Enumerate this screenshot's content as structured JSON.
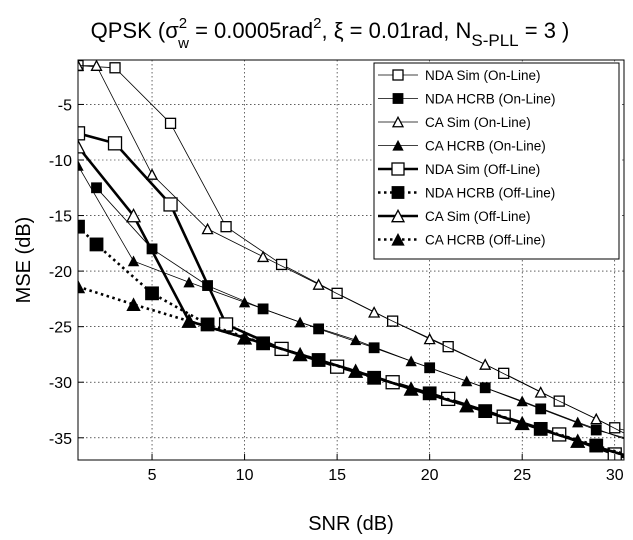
{
  "chart_data": {
    "type": "line",
    "title": {
      "prefix": "QPSK (",
      "sigma": "σ",
      "sigma_sub": "w",
      "sigma_sup": "2",
      "value1": " = 0.0005rad",
      "value1_sup": "2",
      "sep1": ", ",
      "xi": "ξ = 0.01rad",
      "sep2": ", N",
      "n_sub": "S-PLL",
      "suffix": " = 3 )"
    },
    "xlabel": "SNR (dB)",
    "ylabel": "MSE (dB)",
    "xlim": [
      1,
      30.5
    ],
    "ylim": [
      -37,
      -1
    ],
    "xticks": [
      5,
      10,
      15,
      20,
      25,
      30
    ],
    "yticks": [
      -5,
      -10,
      -15,
      -20,
      -25,
      -30,
      -35
    ],
    "grid": true,
    "legend_position": "top-right",
    "series": [
      {
        "name": "NDA Sim (On-Line)",
        "marker": "square-open",
        "line": "thin",
        "color": "#000000",
        "x": [
          1,
          3,
          6,
          9,
          12,
          15,
          18,
          21,
          24,
          27,
          30,
          31
        ],
        "y": [
          -1.5,
          -1.7,
          -6.7,
          -16.0,
          -19.4,
          -22.0,
          -24.5,
          -26.8,
          -29.2,
          -31.7,
          -34.1,
          -34.5
        ]
      },
      {
        "name": "NDA HCRB (On-Line)",
        "marker": "square-filled",
        "line": "thin",
        "color": "#000000",
        "x": [
          2,
          5,
          8,
          11,
          14,
          17,
          20,
          23,
          26,
          29,
          31
        ],
        "y": [
          -12.5,
          -18.0,
          -21.3,
          -23.4,
          -25.2,
          -26.9,
          -28.7,
          -30.5,
          -32.4,
          -34.3,
          -35.2
        ]
      },
      {
        "name": "CA Sim (On-Line)",
        "marker": "triangle-open",
        "line": "thin",
        "color": "#000000",
        "x": [
          1,
          2,
          5,
          8,
          11,
          14,
          17,
          20,
          23,
          26,
          29,
          31
        ],
        "y": [
          -1.5,
          -1.5,
          -11.3,
          -16.2,
          -18.7,
          -21.2,
          -23.7,
          -26.1,
          -28.4,
          -30.9,
          -33.3,
          -35.0
        ]
      },
      {
        "name": "CA HCRB (On-Line)",
        "marker": "triangle-filled",
        "line": "thin",
        "color": "#000000",
        "x": [
          1,
          4,
          7,
          10,
          13,
          16,
          19,
          22,
          25,
          28,
          31
        ],
        "y": [
          -10.5,
          -19.1,
          -21.0,
          -22.8,
          -24.6,
          -26.2,
          -28.1,
          -29.9,
          -31.7,
          -33.6,
          -35.4
        ]
      },
      {
        "name": "NDA Sim (Off-Line)",
        "marker": "square-open",
        "line": "thick-solid",
        "color": "#000000",
        "x": [
          1,
          3,
          6,
          9,
          12,
          15,
          18,
          21,
          24,
          27,
          30,
          31
        ],
        "y": [
          -7.6,
          -8.5,
          -14.0,
          -24.8,
          -27.0,
          -28.6,
          -30.0,
          -31.5,
          -33.1,
          -34.7,
          -36.5,
          -37.0
        ]
      },
      {
        "name": "NDA HCRB (Off-Line)",
        "marker": "square-filled",
        "line": "thick-dotted",
        "color": "#000000",
        "x": [
          1,
          2,
          5,
          8,
          11,
          14,
          17,
          20,
          23,
          26,
          29,
          31
        ],
        "y": [
          -16.0,
          -17.6,
          -22.0,
          -24.8,
          -26.5,
          -28.0,
          -29.6,
          -31.0,
          -32.6,
          -34.2,
          -35.7,
          -36.7
        ]
      },
      {
        "name": "CA Sim (Off-Line)",
        "marker": "triangle-open",
        "line": "thick-solid",
        "color": "#000000",
        "x": [
          1,
          4,
          7,
          10,
          13,
          16,
          19,
          22,
          25,
          28,
          31
        ],
        "y": [
          -8.8,
          -15.0,
          -24.5,
          -26.0,
          -27.5,
          -29.0,
          -30.6,
          -32.1,
          -33.7,
          -35.3,
          -36.8
        ]
      },
      {
        "name": "CA HCRB (Off-Line)",
        "marker": "triangle-filled",
        "line": "thick-dotted",
        "color": "#000000",
        "x": [
          1,
          4,
          7,
          10,
          13,
          16,
          19,
          22,
          25,
          28,
          31
        ],
        "y": [
          -21.4,
          -23.0,
          -24.5,
          -26.0,
          -27.5,
          -29.0,
          -30.6,
          -32.1,
          -33.7,
          -35.3,
          -36.8
        ]
      }
    ]
  }
}
